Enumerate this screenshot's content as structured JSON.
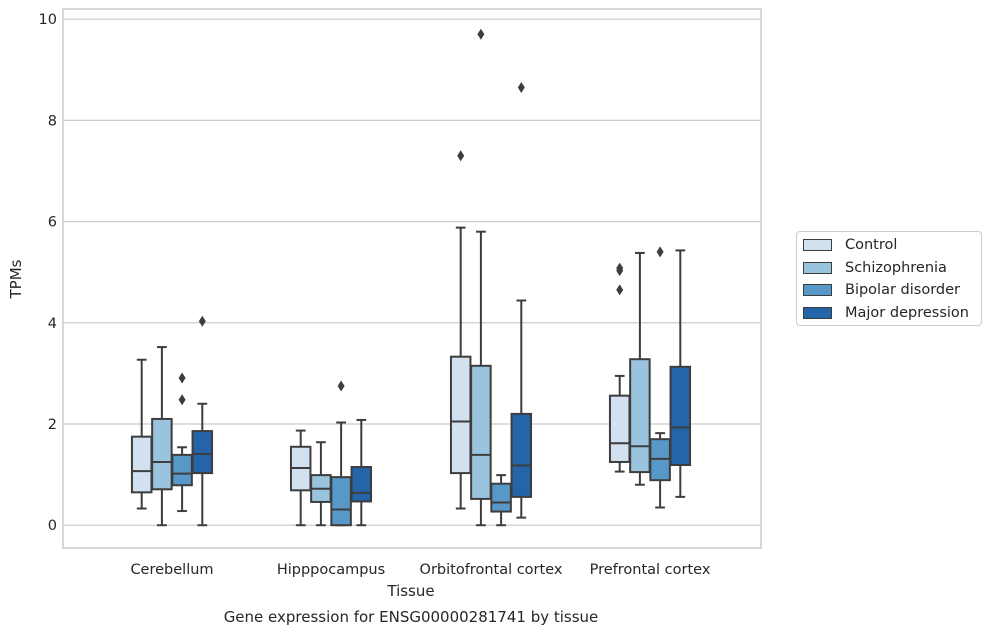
{
  "chart_data": {
    "type": "box",
    "title": "",
    "caption": "Gene expression for ENSG00000281741 by tissue",
    "xlabel": "Tissue",
    "ylabel": "TPMs",
    "ylim": [
      -0.45,
      10.2
    ],
    "yticks": [
      0,
      2,
      4,
      6,
      8,
      10
    ],
    "grid": true,
    "legend_position": "right",
    "categories": [
      "Cerebellum",
      "Hipppocampus",
      "Orbitofrontal cortex",
      "Prefrontal cortex"
    ],
    "series": [
      {
        "name": "Control",
        "color": "#d1e1f0",
        "boxes": [
          {
            "whisker_low": 0.33,
            "q1": 0.65,
            "median": 1.07,
            "q3": 1.75,
            "whisker_high": 3.27,
            "outliers": []
          },
          {
            "whisker_low": 0.0,
            "q1": 0.69,
            "median": 1.13,
            "q3": 1.55,
            "whisker_high": 1.87,
            "outliers": []
          },
          {
            "whisker_low": 0.33,
            "q1": 1.03,
            "median": 2.05,
            "q3": 3.33,
            "whisker_high": 5.88,
            "outliers": [
              7.3
            ]
          },
          {
            "whisker_low": 1.06,
            "q1": 1.25,
            "median": 1.62,
            "q3": 2.56,
            "whisker_high": 2.95,
            "outliers": [
              4.65,
              5.03,
              5.08
            ]
          }
        ]
      },
      {
        "name": "Schizophrenia",
        "color": "#9ac3de",
        "boxes": [
          {
            "whisker_low": 0.0,
            "q1": 0.71,
            "median": 1.25,
            "q3": 2.1,
            "whisker_high": 3.52,
            "outliers": []
          },
          {
            "whisker_low": 0.0,
            "q1": 0.46,
            "median": 0.72,
            "q3": 0.99,
            "whisker_high": 1.64,
            "outliers": []
          },
          {
            "whisker_low": 0.0,
            "q1": 0.52,
            "median": 1.39,
            "q3": 3.15,
            "whisker_high": 5.8,
            "outliers": [
              9.7
            ]
          },
          {
            "whisker_low": 0.8,
            "q1": 1.05,
            "median": 1.56,
            "q3": 3.28,
            "whisker_high": 5.38,
            "outliers": []
          }
        ]
      },
      {
        "name": "Bipolar disorder",
        "color": "#5898c8",
        "boxes": [
          {
            "whisker_low": 0.28,
            "q1": 0.79,
            "median": 1.02,
            "q3": 1.39,
            "whisker_high": 1.54,
            "outliers": [
              2.48,
              2.91
            ]
          },
          {
            "whisker_low": 0.0,
            "q1": 0.0,
            "median": 0.31,
            "q3": 0.95,
            "whisker_high": 2.03,
            "outliers": [
              2.75
            ]
          },
          {
            "whisker_low": 0.0,
            "q1": 0.27,
            "median": 0.45,
            "q3": 0.82,
            "whisker_high": 0.99,
            "outliers": []
          },
          {
            "whisker_low": 0.35,
            "q1": 0.89,
            "median": 1.31,
            "q3": 1.7,
            "whisker_high": 1.82,
            "outliers": [
              5.4
            ]
          }
        ]
      },
      {
        "name": "Major depression",
        "color": "#2464a8",
        "boxes": [
          {
            "whisker_low": 0.0,
            "q1": 1.03,
            "median": 1.41,
            "q3": 1.86,
            "whisker_high": 2.4,
            "outliers": [
              4.03
            ]
          },
          {
            "whisker_low": 0.0,
            "q1": 0.47,
            "median": 0.64,
            "q3": 1.15,
            "whisker_high": 2.08,
            "outliers": []
          },
          {
            "whisker_low": 0.15,
            "q1": 0.56,
            "median": 1.18,
            "q3": 2.2,
            "whisker_high": 4.44,
            "outliers": [
              8.65
            ]
          },
          {
            "whisker_low": 0.56,
            "q1": 1.19,
            "median": 1.93,
            "q3": 3.13,
            "whisker_high": 5.43,
            "outliers": []
          }
        ]
      }
    ]
  }
}
